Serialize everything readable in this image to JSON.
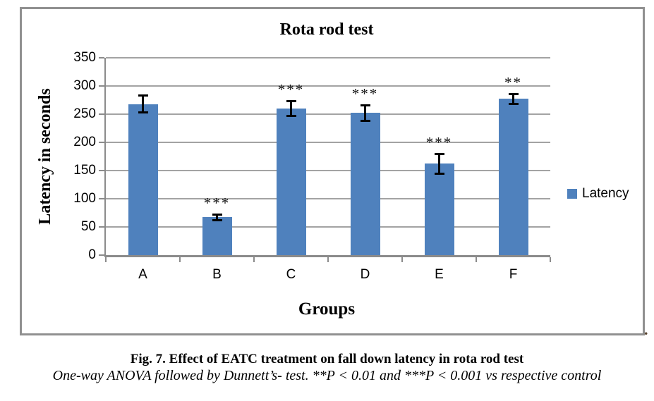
{
  "figure": {
    "caption_bold": "Fig. 7. Effect of EATC treatment on fall down latency in rota rod test",
    "caption_italic": "One-way ANOVA followed by Dunnett’s- test. **P < 0.01 and ***P < 0.001 vs respective control",
    "trailing_period": "."
  },
  "chart_data": {
    "type": "bar",
    "title": "Rota rod test",
    "xlabel": "Groups",
    "ylabel": "Latency in seconds",
    "categories": [
      "A",
      "B",
      "C",
      "D",
      "E",
      "F"
    ],
    "values": [
      268,
      67,
      260,
      252,
      162,
      277
    ],
    "errors": [
      17,
      7,
      15,
      16,
      19,
      11
    ],
    "significance": [
      "",
      "***",
      "***",
      "***",
      "***",
      "**"
    ],
    "ylim": [
      0,
      350
    ],
    "yticks": [
      0,
      50,
      100,
      150,
      200,
      250,
      300,
      350
    ],
    "grid": true,
    "legend": {
      "position": "right",
      "entries": [
        {
          "label": "Latency"
        }
      ]
    },
    "colors": {
      "bar": "#4F81BD",
      "gridline": "#A3A3A3",
      "axis": "#8B8B8B",
      "chart_border": "#909090",
      "error_bar": "#000000"
    }
  }
}
